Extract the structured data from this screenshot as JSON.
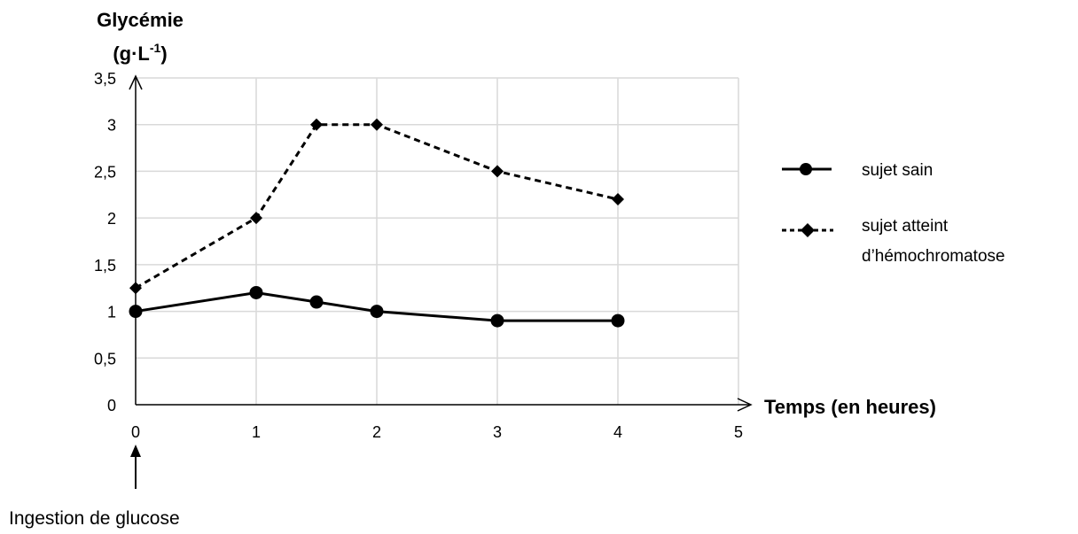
{
  "chart_data": {
    "type": "line",
    "ylabel_line1": "Glycémie",
    "ylabel_line2_main": "(g·L",
    "ylabel_line2_sup": "-1",
    "ylabel_line2_end": ")",
    "xlabel": "Temps (en heures)",
    "xlim": [
      0,
      5
    ],
    "ylim": [
      0,
      3.5
    ],
    "x_ticks": [
      0,
      1,
      2,
      3,
      4,
      5
    ],
    "x_tick_labels": [
      "0",
      "1",
      "2",
      "3",
      "4",
      "5"
    ],
    "y_ticks": [
      0,
      0.5,
      1,
      1.5,
      2,
      2.5,
      3,
      3.5
    ],
    "y_tick_labels": [
      "0",
      "0,5",
      "1",
      "1,5",
      "2",
      "2,5",
      "3",
      "3,5"
    ],
    "grid": true,
    "legend_position": "right",
    "annotation": "Ingestion de glucose",
    "series": [
      {
        "name": "sujet sain",
        "style": "solid",
        "marker": "circle",
        "color": "#000000",
        "x": [
          0,
          1,
          1.5,
          2,
          3,
          4
        ],
        "y": [
          1.0,
          1.2,
          1.1,
          1.0,
          0.9,
          0.9
        ]
      },
      {
        "name_line1": "sujet atteint",
        "name_line2": "d’hémochromatose",
        "style": "dashed",
        "marker": "diamond",
        "color": "#000000",
        "x": [
          0,
          1,
          1.5,
          2,
          3,
          4
        ],
        "y": [
          1.25,
          2.0,
          3.0,
          3.0,
          2.5,
          2.2
        ]
      }
    ]
  }
}
